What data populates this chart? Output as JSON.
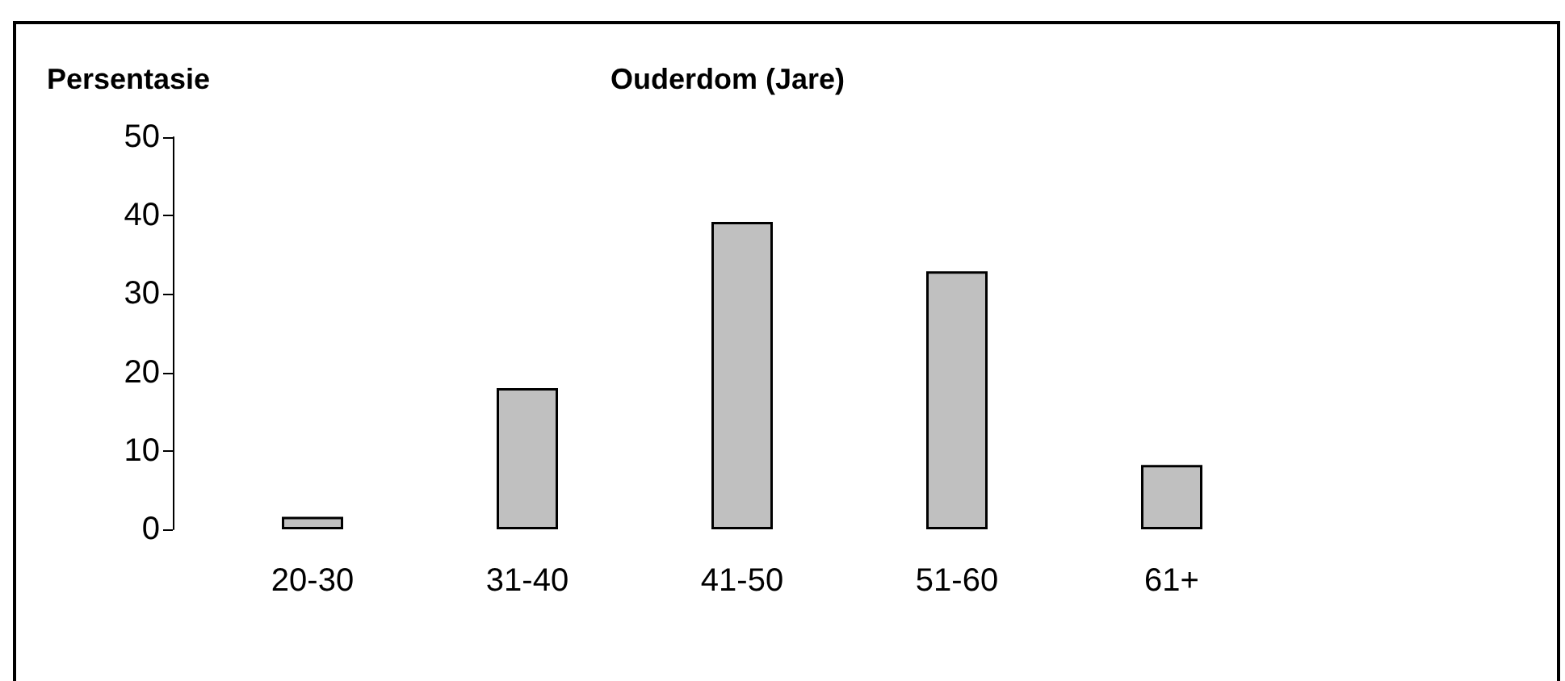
{
  "chart_data": {
    "type": "bar",
    "xlabel": "Ouderdom (Jare)",
    "ylabel": "Persentasie",
    "categories": [
      "20-30",
      "31-40",
      "41-50",
      "51-60",
      "61+"
    ],
    "values": [
      1.6,
      18,
      39.2,
      32.9,
      8.2
    ],
    "color": "#c0c0c0",
    "ylim": [
      0,
      50
    ],
    "yticks": [
      0,
      10,
      20,
      30,
      40,
      50
    ],
    "grid": false
  }
}
